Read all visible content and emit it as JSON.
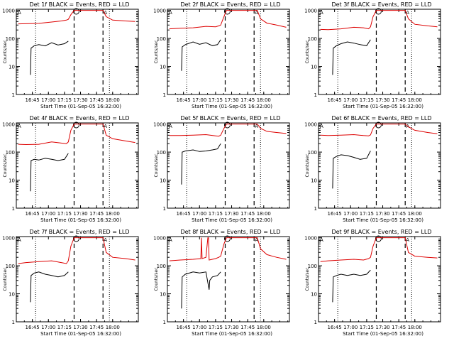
{
  "chart_data": [
    {
      "title": "Det 1f BLACK = Events, RED = LLD",
      "xlabel": "Start Time (01-Sep-05 16:32:00)",
      "ylabel": "Counts/sec",
      "xticks": [
        "16:45",
        "17:00",
        "17:15",
        "17:30",
        "17:45",
        "18:00"
      ],
      "series": [
        {
          "name": "Events",
          "color": "#000000",
          "x": [
            16.72,
            16.73,
            16.78,
            16.85,
            16.95,
            17.05,
            17.15,
            17.25,
            17.31
          ],
          "y": [
            5,
            45,
            55,
            60,
            54,
            70,
            58,
            65,
            80
          ]
        },
        {
          "name": "LLD",
          "color": "#dd0000",
          "x": [
            16.53,
            16.65,
            16.85,
            17.05,
            17.2,
            17.28,
            17.31,
            17.35,
            17.4,
            17.85,
            17.9,
            18.0,
            18.2,
            18.35
          ],
          "y": [
            330,
            335,
            345,
            385,
            420,
            450,
            480,
            700,
            1000,
            1000,
            600,
            450,
            420,
            400
          ]
        }
      ]
    },
    {
      "title": "Det 2f BLACK = Events, RED = LLD",
      "xlabel": "Start Time (01-Sep-05 16:32:00)",
      "ylabel": "Counts/sec",
      "xticks": [
        "16:45",
        "17:00",
        "17:15",
        "17:30",
        "17:45",
        "18:00"
      ],
      "series": [
        {
          "name": "Events",
          "color": "#000000",
          "x": [
            16.72,
            16.73,
            16.78,
            16.9,
            17.0,
            17.1,
            17.2,
            17.28,
            17.33
          ],
          "y": [
            7,
            50,
            60,
            75,
            62,
            70,
            55,
            60,
            90
          ]
        },
        {
          "name": "LLD",
          "color": "#dd0000",
          "x": [
            16.53,
            16.7,
            16.9,
            17.1,
            17.25,
            17.3,
            17.33,
            17.38,
            17.42,
            17.9,
            17.95,
            18.05,
            18.2,
            18.35
          ],
          "y": [
            220,
            230,
            240,
            270,
            260,
            280,
            300,
            600,
            1000,
            1000,
            500,
            350,
            300,
            250
          ]
        }
      ]
    },
    {
      "title": "Det 3f BLACK = Events, RED = LLD",
      "xlabel": "Start Time (01-Sep-05 16:32:00)",
      "ylabel": "Counts/sec",
      "xticks": [
        "16:45",
        "17:00",
        "17:15",
        "17:30",
        "17:45",
        "18:00"
      ],
      "series": [
        {
          "name": "Events",
          "color": "#000000",
          "x": [
            16.72,
            16.73,
            16.78,
            16.85,
            16.95,
            17.05,
            17.15,
            17.25,
            17.31
          ],
          "y": [
            5,
            45,
            55,
            65,
            75,
            68,
            60,
            55,
            90
          ]
        },
        {
          "name": "LLD",
          "color": "#dd0000",
          "x": [
            16.53,
            16.65,
            16.85,
            17.05,
            17.2,
            17.28,
            17.31,
            17.35,
            17.4,
            17.85,
            17.9,
            18.0,
            18.2,
            18.35
          ],
          "y": [
            210,
            205,
            220,
            250,
            240,
            220,
            260,
            600,
            1000,
            1000,
            500,
            320,
            280,
            260
          ]
        }
      ]
    },
    {
      "title": "Det 4f BLACK = Events, RED = LLD",
      "xlabel": "Start Time (01-Sep-05 16:32:00)",
      "ylabel": "Counts/sec",
      "xticks": [
        "16:45",
        "17:00",
        "17:15",
        "17:30",
        "17:45",
        "18:00"
      ],
      "series": [
        {
          "name": "Events",
          "color": "#000000",
          "x": [
            16.72,
            16.73,
            16.78,
            16.85,
            16.95,
            17.05,
            17.15,
            17.25,
            17.31
          ],
          "y": [
            4,
            50,
            55,
            52,
            60,
            55,
            50,
            55,
            90
          ]
        },
        {
          "name": "LLD",
          "color": "#dd0000",
          "x": [
            16.53,
            16.65,
            16.85,
            17.05,
            17.2,
            17.28,
            17.31,
            17.35,
            17.4,
            17.85,
            17.9,
            18.0,
            18.2,
            18.35
          ],
          "y": [
            190,
            185,
            190,
            230,
            210,
            200,
            230,
            600,
            1000,
            1000,
            400,
            300,
            250,
            220
          ]
        }
      ]
    },
    {
      "title": "Det 5f BLACK = Events, RED = LLD",
      "xlabel": "Start Time (01-Sep-05 16:32:00)",
      "ylabel": "Counts/sec",
      "xticks": [
        "16:45",
        "17:00",
        "17:15",
        "17:30",
        "17:45",
        "18:00"
      ],
      "series": [
        {
          "name": "Events",
          "color": "#000000",
          "x": [
            16.72,
            16.73,
            16.78,
            16.9,
            17.0,
            17.1,
            17.2,
            17.28,
            17.33
          ],
          "y": [
            7,
            100,
            110,
            120,
            105,
            110,
            120,
            130,
            200
          ]
        },
        {
          "name": "LLD",
          "color": "#dd0000",
          "x": [
            16.53,
            16.7,
            16.9,
            17.1,
            17.25,
            17.3,
            17.33,
            17.38,
            17.42,
            17.9,
            17.95,
            18.05,
            18.2,
            18.35
          ],
          "y": [
            390,
            390,
            400,
            420,
            380,
            370,
            400,
            700,
            1000,
            1000,
            700,
            550,
            500,
            460
          ]
        }
      ]
    },
    {
      "title": "Det 6f BLACK = Events, RED = LLD",
      "xlabel": "Start Time (01-Sep-05 16:32:00)",
      "ylabel": "Counts/sec",
      "xticks": [
        "16:45",
        "17:00",
        "17:15",
        "17:30",
        "17:45",
        "18:00"
      ],
      "series": [
        {
          "name": "Events",
          "color": "#000000",
          "x": [
            16.72,
            16.73,
            16.78,
            16.85,
            16.95,
            17.05,
            17.15,
            17.25,
            17.31
          ],
          "y": [
            5,
            60,
            70,
            80,
            75,
            65,
            55,
            60,
            110
          ]
        },
        {
          "name": "LLD",
          "color": "#dd0000",
          "x": [
            16.53,
            16.65,
            16.85,
            17.05,
            17.2,
            17.28,
            17.31,
            17.35,
            17.4,
            17.85,
            17.9,
            18.0,
            18.2,
            18.35
          ],
          "y": [
            400,
            390,
            400,
            420,
            390,
            380,
            410,
            700,
            1000,
            1000,
            800,
            600,
            500,
            450
          ]
        }
      ]
    },
    {
      "title": "Det 7f BLACK = Events, RED = LLD",
      "xlabel": "Start Time (01-Sep-05 16:32:00)",
      "ylabel": "Counts/sec",
      "xticks": [
        "16:45",
        "17:00",
        "17:15",
        "17:30",
        "17:45",
        "18:00"
      ],
      "series": [
        {
          "name": "Events",
          "color": "#000000",
          "x": [
            16.72,
            16.73,
            16.78,
            16.85,
            16.95,
            17.05,
            17.15,
            17.25,
            17.31
          ],
          "y": [
            5,
            45,
            55,
            60,
            50,
            45,
            40,
            45,
            60
          ]
        },
        {
          "name": "LLD",
          "color": "#dd0000",
          "x": [
            16.53,
            16.65,
            16.85,
            17.05,
            17.2,
            17.28,
            17.31,
            17.35,
            17.4,
            17.85,
            17.9,
            18.0,
            18.2,
            18.35
          ],
          "y": [
            120,
            130,
            140,
            150,
            130,
            120,
            150,
            500,
            1000,
            1000,
            300,
            200,
            180,
            160
          ]
        }
      ]
    },
    {
      "title": "Det 8f BLACK = Events, RED = LLD",
      "xlabel": "Start Time (01-Sep-05 16:32:00)",
      "ylabel": "Counts/sec",
      "xticks": [
        "16:45",
        "17:00",
        "17:15",
        "17:30",
        "17:45",
        "18:00"
      ],
      "series": [
        {
          "name": "Events",
          "color": "#000000",
          "x": [
            16.72,
            16.73,
            16.78,
            16.9,
            17.0,
            17.1,
            17.15,
            17.16,
            17.2,
            17.28,
            17.33
          ],
          "y": [
            3,
            40,
            50,
            60,
            55,
            60,
            14,
            30,
            40,
            45,
            60
          ]
        },
        {
          "name": "LLD",
          "color": "#dd0000",
          "x": [
            16.53,
            16.7,
            16.9,
            17.02,
            17.03,
            17.04,
            17.1,
            17.13,
            17.14,
            17.15,
            17.25,
            17.3,
            17.33,
            17.38,
            17.42,
            17.9,
            17.95,
            18.05,
            18.2,
            18.35
          ],
          "y": [
            150,
            160,
            170,
            180,
            1000,
            180,
            200,
            1000,
            1000,
            160,
            180,
            200,
            220,
            600,
            1000,
            1000,
            400,
            250,
            200,
            170
          ]
        }
      ]
    },
    {
      "title": "Det 9f BLACK = Events, RED = LLD",
      "xlabel": "Start Time (01-Sep-05 16:32:00)",
      "ylabel": "Counts/sec",
      "xticks": [
        "16:45",
        "17:00",
        "17:15",
        "17:30",
        "17:45",
        "18:00"
      ],
      "series": [
        {
          "name": "Events",
          "color": "#000000",
          "x": [
            16.72,
            16.73,
            16.78,
            16.85,
            16.95,
            17.05,
            17.15,
            17.25,
            17.31
          ],
          "y": [
            5,
            40,
            45,
            50,
            45,
            50,
            45,
            50,
            70
          ]
        },
        {
          "name": "LLD",
          "color": "#dd0000",
          "x": [
            16.53,
            16.65,
            16.85,
            17.05,
            17.2,
            17.28,
            17.31,
            17.35,
            17.4,
            17.85,
            17.9,
            18.0,
            18.2,
            18.35
          ],
          "y": [
            140,
            150,
            160,
            170,
            160,
            180,
            200,
            500,
            1000,
            1000,
            300,
            220,
            200,
            190
          ]
        }
      ]
    }
  ],
  "axes": {
    "type": "line",
    "xlim": [
      16.5,
      18.4
    ],
    "ylim": [
      1,
      1100
    ],
    "yscale": "log",
    "ytick_values": [
      1,
      10,
      100,
      1000
    ],
    "ytick_labels": [
      "1",
      "10",
      "100",
      "1000"
    ],
    "xtick_values": [
      16.75,
      17.0,
      17.25,
      17.5,
      17.75,
      18.0
    ]
  },
  "markers": {
    "dotted_lines": [
      16.8,
      17.95
    ],
    "dashed_lines": [
      17.4,
      17.85
    ],
    "attenuator_symbol": "A",
    "circle_symbol": "O"
  }
}
